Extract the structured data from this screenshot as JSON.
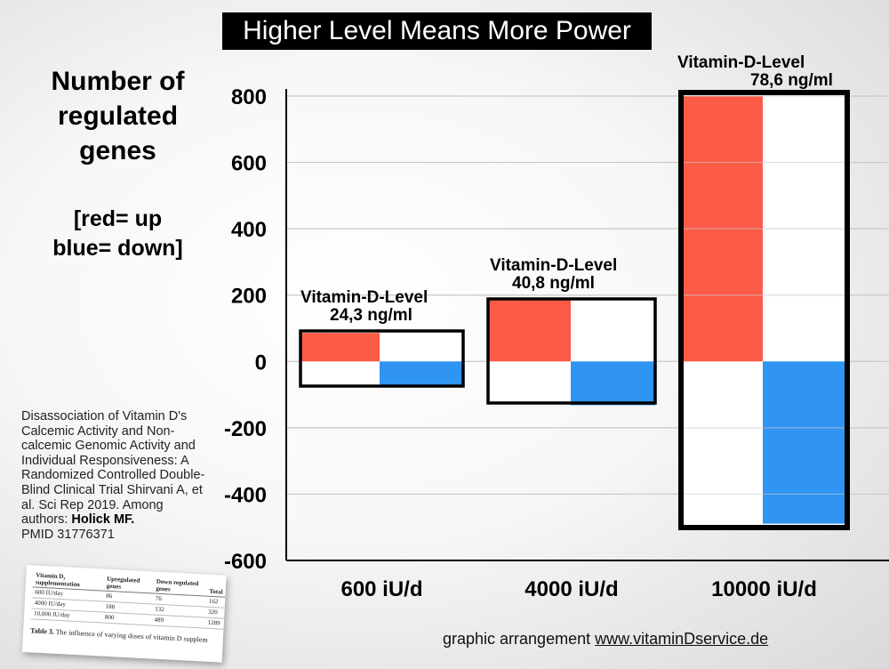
{
  "title": "Higher Level Means More Power",
  "ylabel_lines": [
    "Number of",
    "regulated",
    "genes"
  ],
  "legend_note_lines": [
    "[red= up",
    "blue= down]"
  ],
  "source": {
    "text": "Disassociation of Vitamin D's Calcemic Activity and Non-calcemic Genomic Activity and Individual Responsiveness: A Randomized Controlled Double-Blind Clinical Trial Shirvani A, et al. Sci Rep 2019. Among authors: ",
    "bold": "Holick MF.",
    "pmid": "PMID 31776371"
  },
  "credit": {
    "prefix": "graphic arrangement ",
    "url": "www.vitaminDservice.de"
  },
  "colors": {
    "up": "#fd5a47",
    "down": "#2f94f2",
    "grid": "#c8c8c8",
    "outline": "#000000"
  },
  "chart_data": {
    "type": "bar",
    "categories": [
      "600 iU/d",
      "4000 iU/d",
      "10000 iU/d"
    ],
    "series": [
      {
        "name": "up",
        "values": [
          86,
          188,
          800
        ]
      },
      {
        "name": "down",
        "values": [
          -76,
          -132,
          -489
        ]
      }
    ],
    "level_labels": [
      [
        "Vitamin-D-Level",
        "24,3 ng/ml"
      ],
      [
        "Vitamin-D-Level",
        "40,8 ng/ml"
      ],
      [
        "Vitamin-D-Level",
        "78,6 ng/ml"
      ]
    ],
    "ylim": [
      -600,
      800
    ],
    "yticks": [
      800,
      600,
      400,
      200,
      0,
      -200,
      -400,
      -600
    ],
    "grid": true
  },
  "table_snippet": {
    "headers": [
      "Vitamin D₃ supplementation",
      "Upregulated genes",
      "Down regulated genes",
      "Total"
    ],
    "rows": [
      [
        "600 IU/day",
        "86",
        "76",
        "162"
      ],
      [
        "4000 IU/day",
        "188",
        "132",
        "320"
      ],
      [
        "10,000 IU/day",
        "800",
        "489",
        "1289"
      ]
    ],
    "caption_bold": "Table 3.",
    "caption_text": "The influence of varying doses of vitamin D supplem"
  }
}
